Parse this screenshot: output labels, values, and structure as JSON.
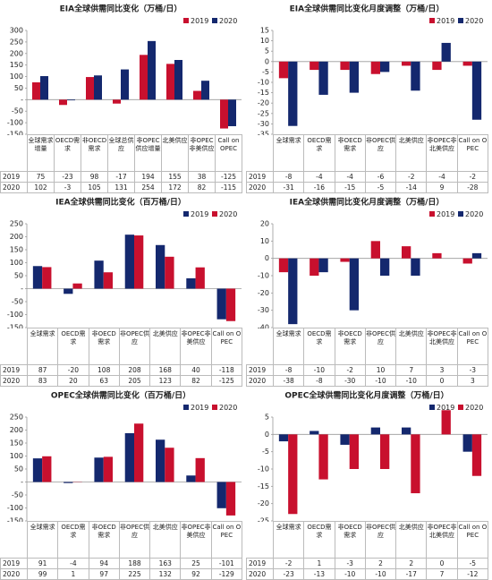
{
  "chart_data": [
    {
      "type": "bar",
      "title": "EIA全球供需同比变化（万桶/日）",
      "categories": [
        "全球需求增量",
        "OECD需求",
        "非OECD需求",
        "全球总供应",
        "非OPEC供应增量",
        "北美供应",
        "非OPEC非美供应",
        "Call on OPEC"
      ],
      "series": [
        {
          "name": "2019",
          "color": "#c8102e",
          "values": [
            75,
            -23,
            98,
            -17,
            194,
            155,
            38,
            -125
          ]
        },
        {
          "name": "2020",
          "color": "#14286e",
          "values": [
            102,
            -3,
            105,
            131,
            254,
            172,
            82,
            -115
          ]
        }
      ],
      "ylim": [
        -150,
        300
      ],
      "yticks": [
        300,
        250,
        200,
        150,
        100,
        50,
        {
          "value": 0,
          "label": "-"
        },
        -50,
        -100,
        -150
      ]
    },
    {
      "type": "bar",
      "title": "EIA全球供需同比变化月度调整（万桶/日）",
      "categories": [
        "全球需求",
        "OECD需求",
        "非OECD需求",
        "非OPEC供应",
        "北美供应",
        "非OPEC非北美供应",
        "Call on OPEC"
      ],
      "series": [
        {
          "name": "2019",
          "color": "#c8102e",
          "values": [
            -8,
            -4,
            -4,
            -6,
            -2,
            -4,
            -2
          ]
        },
        {
          "name": "2020",
          "color": "#14286e",
          "values": [
            -31,
            -16,
            -15,
            -5,
            -14,
            9,
            -28
          ]
        }
      ],
      "ylim": [
        -35,
        15
      ],
      "yticks": [
        15,
        10,
        5,
        0,
        -5,
        -10,
        -15,
        -20,
        -25,
        -30,
        -35
      ]
    },
    {
      "type": "bar",
      "title": "IEA全球供需同比变化（百万桶/日）",
      "categories": [
        "全球需求",
        "OECD需求",
        "非OECD需求",
        "非OPEC供应",
        "北美供应",
        "非OPEC非美供应",
        "Call on OPEC"
      ],
      "series": [
        {
          "name": "2019",
          "color": "#14286e",
          "values": [
            87,
            -20,
            108,
            208,
            168,
            40,
            -118
          ]
        },
        {
          "name": "2020",
          "color": "#c8102e",
          "values": [
            83,
            20,
            63,
            205,
            123,
            82,
            -125
          ]
        }
      ],
      "ylim": [
        -150,
        250
      ],
      "yticks": [
        250,
        200,
        150,
        100,
        50,
        {
          "value": 0,
          "label": "-"
        },
        -50,
        -100,
        -150
      ]
    },
    {
      "type": "bar",
      "title": "IEA全球供需同比变化月度调整（万桶/日）",
      "categories": [
        "全球需求",
        "OECD需求",
        "非OECD需求",
        "非OPEC供应",
        "北美供应",
        "非OPEC非北美供应",
        "Call on OPEC"
      ],
      "series": [
        {
          "name": "2019",
          "color": "#c8102e",
          "values": [
            -8,
            -10,
            -2,
            10,
            7,
            3,
            -3
          ]
        },
        {
          "name": "2020",
          "color": "#14286e",
          "values": [
            -38,
            -8,
            -30,
            -10,
            -10,
            0,
            3
          ]
        }
      ],
      "ylim": [
        -40,
        20
      ],
      "yticks": [
        20,
        10,
        0,
        -10,
        -20,
        -30,
        -40
      ]
    },
    {
      "type": "bar",
      "title": "OPEC全球供需同比变化（百万桶/日）",
      "categories": [
        "全球需求",
        "OECD需求",
        "非OECD需求",
        "非OPEC供应",
        "北美供应",
        "非OPEC非美供应",
        "Call on OPEC"
      ],
      "series": [
        {
          "name": "2019",
          "color": "#14286e",
          "values": [
            91,
            -4,
            94,
            188,
            163,
            25,
            -101
          ]
        },
        {
          "name": "2020",
          "color": "#c8102e",
          "values": [
            99,
            1,
            97,
            225,
            132,
            92,
            -129
          ]
        }
      ],
      "ylim": [
        -150,
        250
      ],
      "yticks": [
        250,
        200,
        150,
        100,
        50,
        {
          "value": 0,
          "label": "-"
        },
        -50,
        -100,
        -150
      ]
    },
    {
      "type": "bar",
      "title": "OPEC全球供需同比变化月度调整（万桶/日）",
      "categories": [
        "全球需求",
        "OECD需求",
        "非OECD需求",
        "非OPEC供应",
        "北美供应",
        "非OPEC非北美供应",
        "Call on OPEC"
      ],
      "series": [
        {
          "name": "2019",
          "color": "#14286e",
          "values": [
            -2,
            1,
            -3,
            2,
            2,
            0,
            -5
          ]
        },
        {
          "name": "2020",
          "color": "#c8102e",
          "values": [
            -23,
            -13,
            -10,
            -10,
            -17,
            7,
            -12
          ]
        }
      ],
      "ylim": [
        -25,
        5
      ],
      "yticks": [
        5,
        0,
        -5,
        -10,
        -15,
        -20,
        -25
      ]
    }
  ]
}
